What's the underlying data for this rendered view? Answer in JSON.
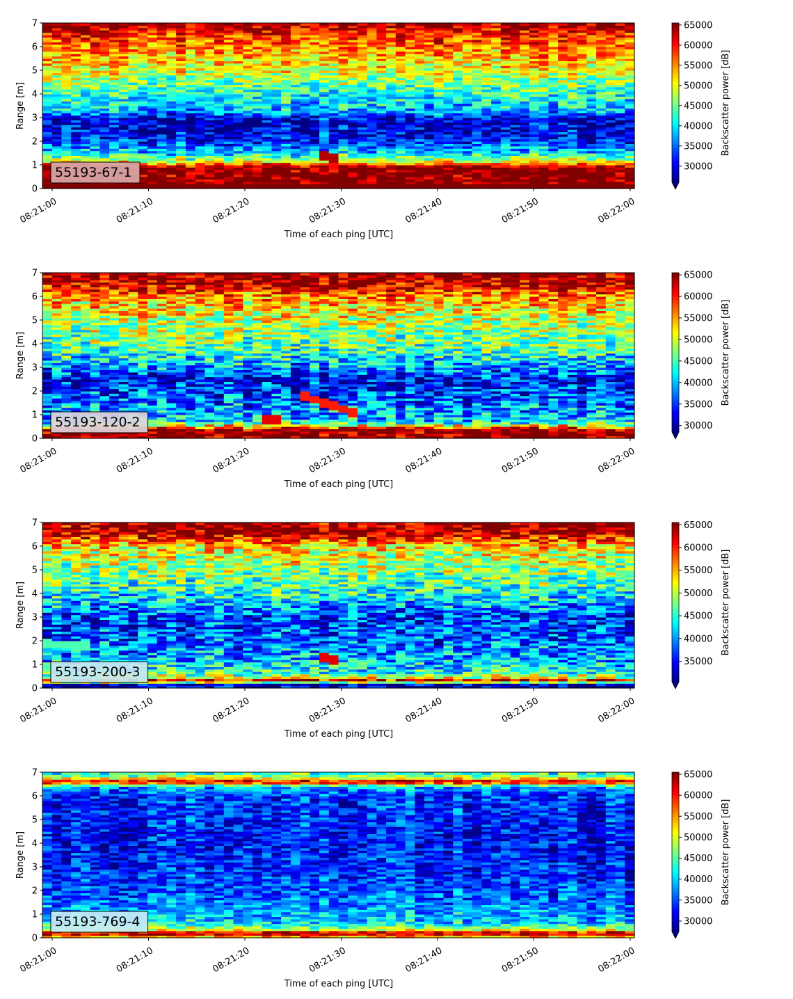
{
  "chart_data": [
    {
      "type": "heatmap",
      "label": "55193-67-1",
      "label_bg": "#d8a8a8",
      "xlabel": "Time of each ping [UTC]",
      "ylabel": "Range [m]",
      "xticks": [
        "08:21:00",
        "08:21:10",
        "08:21:20",
        "08:21:30",
        "08:21:40",
        "08:21:50",
        "08:22:00"
      ],
      "yticks": [
        0,
        1,
        2,
        3,
        4,
        5,
        6,
        7
      ],
      "ylim": [
        0,
        7
      ],
      "colorbar": {
        "label": "Backscatter power [dB]",
        "ticks": [
          30000,
          35000,
          40000,
          45000,
          50000,
          55000,
          60000,
          65000
        ],
        "range": [
          26000,
          65500
        ],
        "extend": "min",
        "colormap": "jet"
      },
      "profile": [
        [
          0,
          5.0
        ],
        [
          0.25,
          1.0
        ],
        [
          0.9,
          1.0
        ],
        [
          1.2,
          0.55
        ],
        [
          1.6,
          0.3
        ],
        [
          2.2,
          0.1
        ],
        [
          2.9,
          0.08
        ],
        [
          3.3,
          0.3
        ],
        [
          4.0,
          0.4
        ],
        [
          5.0,
          0.6
        ],
        [
          6.0,
          0.75
        ],
        [
          6.6,
          0.85
        ],
        [
          7.0,
          1.0
        ]
      ],
      "features": [
        {
          "type": "streak",
          "t0": 27.5,
          "t1": 30.0,
          "r0": 1.5,
          "r1": 1.2,
          "v": 0.95
        },
        {
          "type": "column",
          "t0": 28.0,
          "t1": 29.0,
          "r0": 1.8,
          "r1": 3.3,
          "v": 0.25
        }
      ]
    },
    {
      "type": "heatmap",
      "label": "55193-120-2",
      "label_bg": "#ded4dc",
      "xlabel": "Time of each ping [UTC]",
      "ylabel": "Range [m]",
      "xticks": [
        "08:21:00",
        "08:21:10",
        "08:21:20",
        "08:21:30",
        "08:21:40",
        "08:21:50",
        "08:22:00"
      ],
      "yticks": [
        0,
        1,
        2,
        3,
        4,
        5,
        6,
        7
      ],
      "ylim": [
        0,
        7
      ],
      "colorbar": {
        "label": "Backscatter power [dB]",
        "ticks": [
          30000,
          35000,
          40000,
          45000,
          50000,
          55000,
          60000,
          65000
        ],
        "range": [
          28500,
          65500
        ],
        "extend": "min",
        "colormap": "jet"
      },
      "profile": [
        [
          0,
          1.0
        ],
        [
          0.35,
          1.0
        ],
        [
          0.5,
          0.7
        ],
        [
          0.7,
          0.35
        ],
        [
          1.0,
          0.3
        ],
        [
          1.8,
          0.2
        ],
        [
          2.5,
          0.12
        ],
        [
          3.1,
          0.3
        ],
        [
          3.8,
          0.45
        ],
        [
          5.0,
          0.58
        ],
        [
          6.0,
          0.72
        ],
        [
          6.5,
          0.95
        ],
        [
          7.0,
          1.0
        ]
      ],
      "features": [
        {
          "type": "streak",
          "t0": 25.5,
          "t1": 31.5,
          "r0": 1.9,
          "r1": 1.05,
          "v": 0.85
        },
        {
          "type": "streak",
          "t0": 21.5,
          "t1": 23.5,
          "r0": 0.8,
          "r1": 0.8,
          "v": 0.9
        }
      ]
    },
    {
      "type": "heatmap",
      "label": "55193-200-3",
      "label_bg": "#c8e8f0",
      "xlabel": "Time of each ping [UTC]",
      "ylabel": "Range [m]",
      "xticks": [
        "08:21:00",
        "08:21:10",
        "08:21:20",
        "08:21:30",
        "08:21:40",
        "08:21:50",
        "08:22:00"
      ],
      "yticks": [
        0,
        1,
        2,
        3,
        4,
        5,
        6,
        7
      ],
      "ylim": [
        0,
        7
      ],
      "colorbar": {
        "label": "Backscatter power [dB]",
        "ticks": [
          35000,
          40000,
          45000,
          50000,
          55000,
          60000,
          65000
        ],
        "range": [
          30500,
          65500
        ],
        "extend": "min",
        "colormap": "jet"
      },
      "profile": [
        [
          0,
          0.05
        ],
        [
          0.2,
          0.05
        ],
        [
          0.3,
          1.0
        ],
        [
          0.45,
          0.6
        ],
        [
          0.7,
          0.4
        ],
        [
          1.2,
          0.3
        ],
        [
          2.0,
          0.22
        ],
        [
          3.0,
          0.18
        ],
        [
          3.8,
          0.35
        ],
        [
          5.0,
          0.52
        ],
        [
          6.0,
          0.65
        ],
        [
          6.5,
          0.95
        ],
        [
          7.0,
          1.0
        ]
      ],
      "features": [
        {
          "type": "streak",
          "t0": 27.5,
          "t1": 29.5,
          "r0": 1.35,
          "r1": 1.2,
          "v": 0.9
        },
        {
          "type": "streak",
          "t0": -1.0,
          "t1": 3.5,
          "r0": 1.9,
          "r1": 1.8,
          "v": 0.45
        }
      ]
    },
    {
      "type": "heatmap",
      "label": "55193-769-4",
      "label_bg": "#c8ecf4",
      "xlabel": "Time of each ping [UTC]",
      "ylabel": "Range [m]",
      "xticks": [
        "08:21:00",
        "08:21:10",
        "08:21:20",
        "08:21:30",
        "08:21:40",
        "08:21:50",
        "08:22:00"
      ],
      "yticks": [
        0,
        1,
        2,
        3,
        4,
        5,
        6,
        7
      ],
      "ylim": [
        0,
        7
      ],
      "colorbar": {
        "label": "Backscatter power [dB]",
        "ticks": [
          30000,
          35000,
          40000,
          45000,
          50000,
          55000,
          60000,
          65000
        ],
        "range": [
          27500,
          65500
        ],
        "extend": "min",
        "colormap": "jet"
      },
      "profile": [
        [
          0,
          0.6
        ],
        [
          0.2,
          1.0
        ],
        [
          0.35,
          0.6
        ],
        [
          0.6,
          0.35
        ],
        [
          1.0,
          0.3
        ],
        [
          2.0,
          0.2
        ],
        [
          3.0,
          0.16
        ],
        [
          4.0,
          0.14
        ],
        [
          5.0,
          0.15
        ],
        [
          6.0,
          0.18
        ],
        [
          6.4,
          0.3
        ],
        [
          6.6,
          0.95
        ],
        [
          6.8,
          0.55
        ],
        [
          7.0,
          0.4
        ]
      ],
      "features": []
    }
  ]
}
